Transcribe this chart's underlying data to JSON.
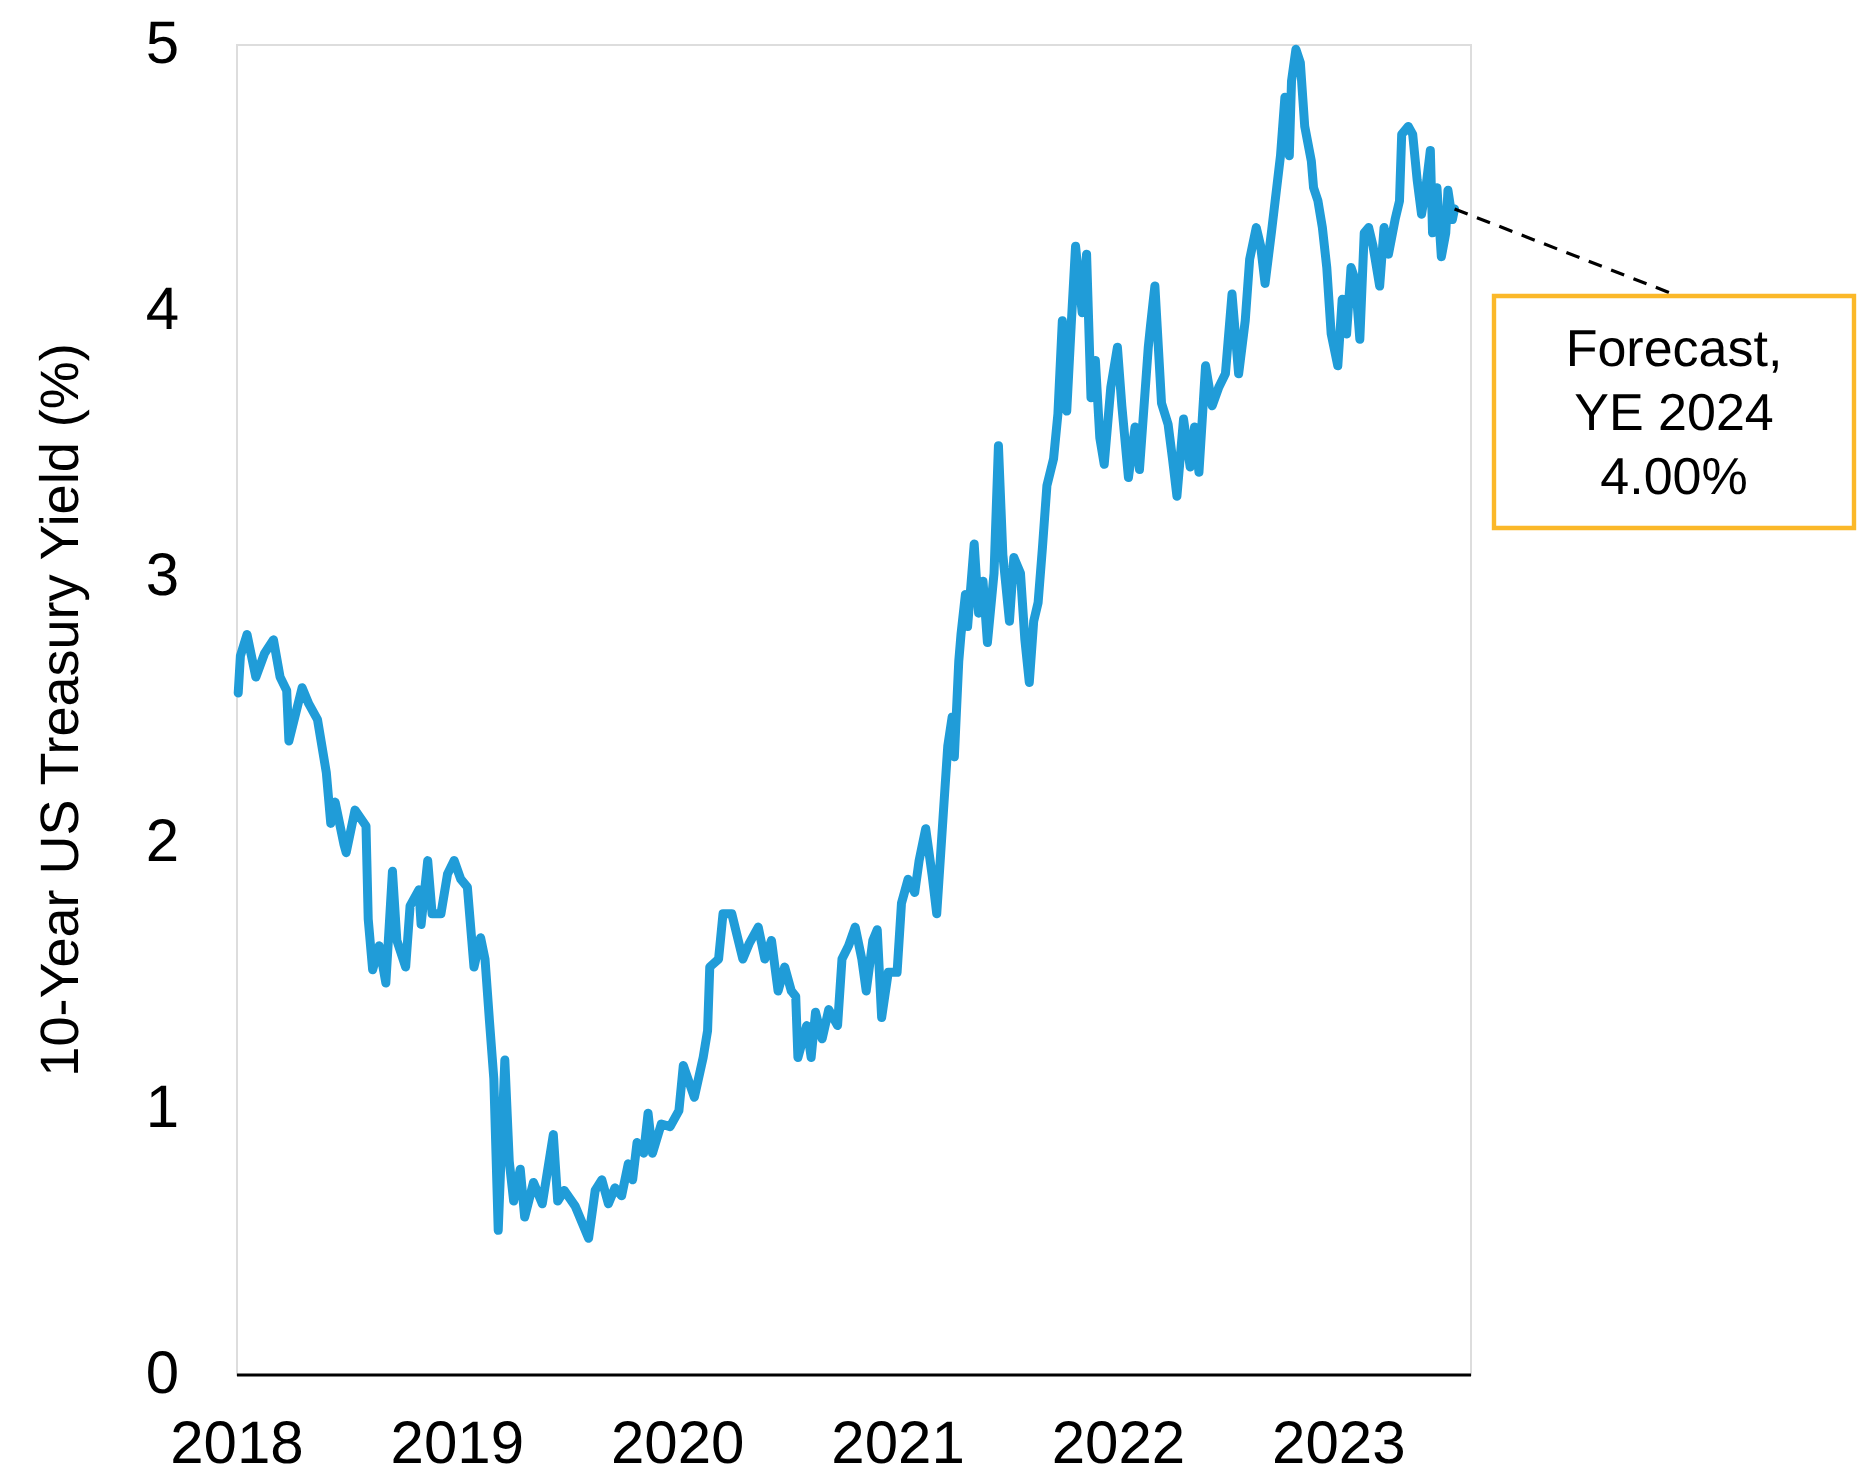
{
  "chart_data": {
    "type": "line",
    "ylabel": "10-Year US Treasury Yield (%)",
    "x": [
      2018.01,
      2018.02,
      2018.05,
      2018.09,
      2018.13,
      2018.17,
      2018.2,
      2018.23,
      2018.24,
      2018.3,
      2018.33,
      2018.37,
      2018.4,
      2018.41,
      2018.43,
      2018.45,
      2018.49,
      2018.5,
      2018.54,
      2018.59,
      2018.6,
      2018.62,
      2018.65,
      2018.68,
      2018.71,
      2018.73,
      2018.77,
      2018.79,
      2018.83,
      2018.84,
      2018.87,
      2018.89,
      2018.93,
      2018.96,
      2018.99,
      2019.02,
      2019.05,
      2019.08,
      2019.11,
      2019.13,
      2019.15,
      2019.17,
      2019.19,
      2019.22,
      2019.24,
      2019.26,
      2019.29,
      2019.31,
      2019.35,
      2019.39,
      2019.44,
      2019.46,
      2019.49,
      2019.54,
      2019.6,
      2019.63,
      2019.66,
      2019.69,
      2019.72,
      2019.75,
      2019.78,
      2019.8,
      2019.82,
      2019.85,
      2019.87,
      2019.89,
      2019.93,
      2019.97,
      2020.01,
      2020.03,
      2020.08,
      2020.12,
      2020.14,
      2020.15,
      2020.19,
      2020.21,
      2020.25,
      2020.3,
      2020.33,
      2020.37,
      2020.4,
      2020.43,
      2020.46,
      2020.49,
      2020.52,
      2020.54,
      2020.55,
      2020.59,
      2020.61,
      2020.63,
      2020.66,
      2020.69,
      2020.73,
      2020.75,
      2020.78,
      2020.81,
      2020.84,
      2020.86,
      2020.89,
      2020.91,
      2020.93,
      2020.96,
      2021.0,
      2021.02,
      2021.05,
      2021.08,
      2021.1,
      2021.13,
      2021.16,
      2021.18,
      2021.21,
      2021.23,
      2021.25,
      2021.26,
      2021.28,
      2021.29,
      2021.31,
      2021.32,
      2021.35,
      2021.37,
      2021.39,
      2021.41,
      2021.44,
      2021.46,
      2021.48,
      2021.51,
      2021.53,
      2021.56,
      2021.58,
      2021.6,
      2021.62,
      2021.64,
      2021.66,
      2021.68,
      2021.71,
      2021.73,
      2021.75,
      2021.77,
      2021.79,
      2021.81,
      2021.84,
      2021.86,
      2021.88,
      2021.9,
      2021.92,
      2021.94,
      2021.97,
      2022.0,
      2022.02,
      2022.05,
      2022.08,
      2022.1,
      2022.14,
      2022.15,
      2022.17,
      2022.2,
      2022.23,
      2022.25,
      2022.27,
      2022.3,
      2022.33,
      2022.35,
      2022.37,
      2022.4,
      2022.42,
      2022.43,
      2022.46,
      2022.49,
      2022.52,
      2022.55,
      2022.58,
      2022.6,
      2022.63,
      2022.65,
      2022.67,
      2022.7,
      2022.72,
      2022.74,
      2022.76,
      2022.78,
      2022.79,
      2022.81,
      2022.83,
      2022.85,
      2022.88,
      2022.89,
      2022.91,
      2022.93,
      2022.95,
      2022.97,
      2023.0,
      2023.02,
      2023.04,
      2023.06,
      2023.08,
      2023.1,
      2023.12,
      2023.14,
      2023.16,
      2023.19,
      2023.21,
      2023.23,
      2023.26,
      2023.28,
      2023.29,
      2023.32,
      2023.34,
      2023.36,
      2023.38,
      2023.4,
      2023.42,
      2023.43,
      2023.45,
      2023.47,
      2023.49,
      2023.5,
      2023.52,
      2023.53
    ],
    "series": [
      {
        "color": "#209cd8",
        "values": [
          2.56,
          2.7,
          2.78,
          2.62,
          2.71,
          2.76,
          2.62,
          2.57,
          2.38,
          2.58,
          2.52,
          2.46,
          2.31,
          2.26,
          2.07,
          2.15,
          1.99,
          1.96,
          2.12,
          2.06,
          1.71,
          1.52,
          1.61,
          1.47,
          1.89,
          1.63,
          1.53,
          1.76,
          1.82,
          1.69,
          1.93,
          1.73,
          1.73,
          1.88,
          1.93,
          1.86,
          1.83,
          1.53,
          1.64,
          1.56,
          1.33,
          1.11,
          0.54,
          1.18,
          0.8,
          0.65,
          0.77,
          0.59,
          0.72,
          0.64,
          0.9,
          0.65,
          0.69,
          0.63,
          0.51,
          0.69,
          0.73,
          0.64,
          0.7,
          0.67,
          0.79,
          0.73,
          0.87,
          0.83,
          0.98,
          0.83,
          0.94,
          0.93,
          0.99,
          1.16,
          1.04,
          1.19,
          1.29,
          1.53,
          1.56,
          1.73,
          1.73,
          1.56,
          1.62,
          1.68,
          1.56,
          1.63,
          1.44,
          1.53,
          1.44,
          1.42,
          1.19,
          1.31,
          1.19,
          1.36,
          1.26,
          1.37,
          1.31,
          1.56,
          1.61,
          1.68,
          1.56,
          1.44,
          1.63,
          1.67,
          1.34,
          1.51,
          1.51,
          1.77,
          1.86,
          1.81,
          1.93,
          2.05,
          1.87,
          1.73,
          2.11,
          2.36,
          2.47,
          2.32,
          2.68,
          2.78,
          2.93,
          2.81,
          3.12,
          2.86,
          2.98,
          2.75,
          3.01,
          3.49,
          3.08,
          2.83,
          3.07,
          3.01,
          2.76,
          2.6,
          2.83,
          2.9,
          3.11,
          3.34,
          3.44,
          3.61,
          3.96,
          3.62,
          3.94,
          4.24,
          3.99,
          4.21,
          3.67,
          3.81,
          3.52,
          3.42,
          3.71,
          3.86,
          3.64,
          3.37,
          3.56,
          3.4,
          3.86,
          3.94,
          4.09,
          3.65,
          3.57,
          3.44,
          3.3,
          3.59,
          3.41,
          3.56,
          3.39,
          3.79,
          3.69,
          3.64,
          3.71,
          3.76,
          4.06,
          3.76,
          3.96,
          4.19,
          4.31,
          4.24,
          4.1,
          4.3,
          4.44,
          4.58,
          4.8,
          4.58,
          4.86,
          4.98,
          4.93,
          4.69,
          4.56,
          4.46,
          4.41,
          4.31,
          4.16,
          3.91,
          3.79,
          4.04,
          3.91,
          4.16,
          4.11,
          3.89,
          4.29,
          4.31,
          4.24,
          4.09,
          4.31,
          4.21,
          4.34,
          4.41,
          4.66,
          4.69,
          4.66,
          4.49,
          4.36,
          4.46,
          4.6,
          4.29,
          4.46,
          4.2,
          4.29,
          4.45,
          4.34,
          4.38
        ]
      }
    ],
    "xlim": [
      2018,
      2023.6
    ],
    "xticks": [
      2018,
      2019,
      2020,
      2021,
      2022,
      2023
    ],
    "ylim": [
      0,
      5
    ],
    "yticks": [
      0,
      1,
      2,
      3,
      4,
      5
    ],
    "grid": false,
    "line_style": "solid",
    "annotations": [
      {
        "text": "Forecast,\nYE 2024\n4.00%",
        "x": 2023.53,
        "y": 4.38
      }
    ]
  }
}
